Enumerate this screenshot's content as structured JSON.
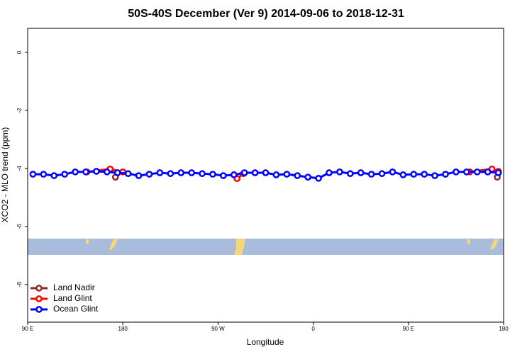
{
  "chart_data": {
    "type": "line",
    "title": "50S-40S December (Ver 9)   2014-09-06 to 2018-12-31",
    "xlabel": "Longitude",
    "ylabel": "XCO2 - MLO trend (ppm)",
    "xlim": [
      90,
      540
    ],
    "ylim": [
      -9.3,
      0.83
    ],
    "xticks": [
      {
        "value": 90,
        "label": "90 E"
      },
      {
        "value": 180,
        "label": "180"
      },
      {
        "value": 270,
        "label": "90 W"
      },
      {
        "value": 360,
        "label": "0"
      },
      {
        "value": 450,
        "label": "90 E"
      },
      {
        "value": 540,
        "label": "180"
      }
    ],
    "yticks": [
      0,
      -2,
      -4,
      -6,
      -8
    ],
    "legend": "bottom-left",
    "series": [
      {
        "name": "Land Nadir",
        "color": "#8b2a2a",
        "x": [
          173,
          null,
          534
        ],
        "values": [
          -4.3,
          null,
          -4.3
        ]
      },
      {
        "name": "Land Glint",
        "color": "#ff0000",
        "x": [
          146,
          168,
          180,
          null,
          288,
          294,
          null,
          508,
          529,
          535
        ],
        "values": [
          -4.12,
          -4.02,
          -4.12,
          null,
          -4.35,
          -4.18,
          null,
          -4.12,
          -4.02,
          -4.1
        ]
      },
      {
        "name": "Ocean Glint",
        "color": "#0000ff",
        "x": [
          95,
          105,
          115,
          125,
          135,
          145,
          155,
          165,
          175,
          185,
          195,
          205,
          215,
          225,
          235,
          245,
          255,
          265,
          275,
          285,
          295,
          305,
          315,
          325,
          335,
          345,
          355,
          365,
          375,
          385,
          395,
          405,
          415,
          425,
          435,
          445,
          455,
          465,
          475,
          485,
          495,
          505,
          515,
          525,
          535
        ],
        "values": [
          -4.2,
          -4.2,
          -4.25,
          -4.2,
          -4.12,
          -4.12,
          -4.1,
          -4.12,
          -4.15,
          -4.18,
          -4.25,
          -4.2,
          -4.15,
          -4.18,
          -4.15,
          -4.15,
          -4.18,
          -4.2,
          -4.25,
          -4.22,
          -4.15,
          -4.15,
          -4.15,
          -4.22,
          -4.2,
          -4.25,
          -4.3,
          -4.34,
          -4.15,
          -4.12,
          -4.18,
          -4.15,
          -4.2,
          -4.18,
          -4.12,
          -4.22,
          -4.2,
          -4.2,
          -4.25,
          -4.2,
          -4.12,
          -4.12,
          -4.12,
          -4.12,
          -4.15
        ]
      }
    ]
  }
}
